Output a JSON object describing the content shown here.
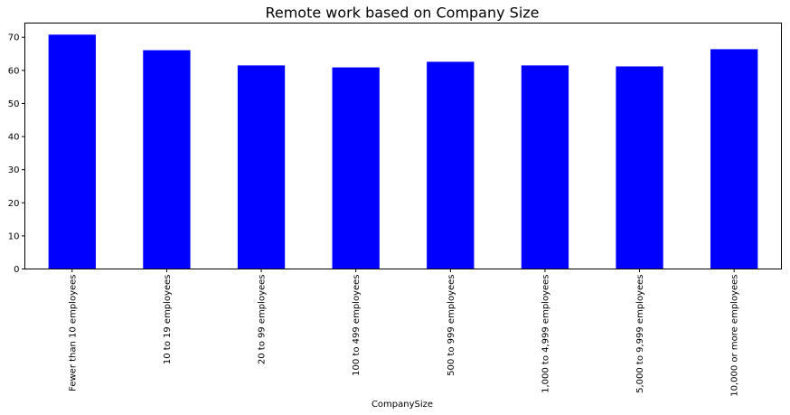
{
  "chart_data": {
    "type": "bar",
    "title": "Remote work based on Company Size",
    "xlabel": "CompanySize",
    "ylabel": "",
    "categories": [
      "Fewer than 10 employees",
      "10 to 19 employees",
      "20 to 99 employees",
      "100 to 499 employees",
      "500 to 999 employees",
      "1,000 to 4,999 employees",
      "5,000 to 9,999 employees",
      "10,000 or more employees"
    ],
    "values": [
      70.8,
      66.1,
      61.5,
      60.9,
      62.6,
      61.5,
      61.2,
      66.4
    ],
    "ylim": [
      0,
      74.3
    ],
    "yticks": [
      0,
      10,
      20,
      30,
      40,
      50,
      60,
      70
    ],
    "bar_color": "#0000ff",
    "grid": false,
    "legend": false
  }
}
